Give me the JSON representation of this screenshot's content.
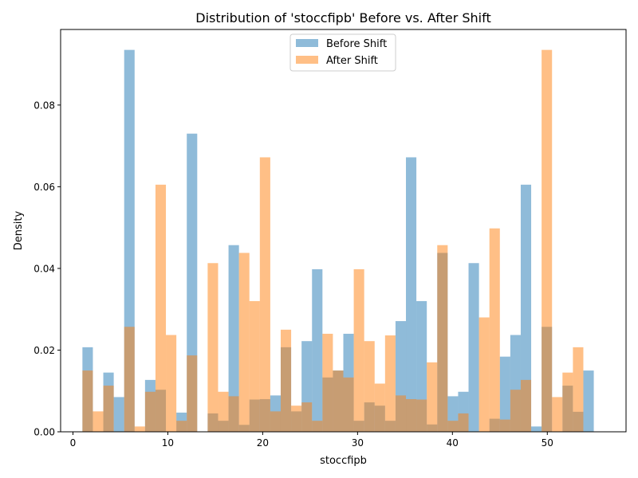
{
  "chart_data": {
    "type": "bar",
    "title": "Distribution of 'stoccfipb' Before vs. After Shift",
    "xlabel": "stoccfipb",
    "ylabel": "Density",
    "xlim": [
      -1.3,
      58.3
    ],
    "ylim": [
      0,
      0.0985
    ],
    "xticks": [
      0,
      10,
      20,
      30,
      40,
      50
    ],
    "yticks": [
      0.0,
      0.02,
      0.04,
      0.06,
      0.08
    ],
    "ytick_labels": [
      "0.00",
      "0.02",
      "0.04",
      "0.06",
      "0.08"
    ],
    "grid": false,
    "legend": "top-center",
    "bin_width": 1.1,
    "bin_start": 1.0,
    "series": [
      {
        "name": "Before Shift",
        "color": "#1f77b4",
        "alpha": 0.5,
        "values": [
          0.0207,
          0,
          0.0145,
          0.0085,
          0.0935,
          0,
          0.0127,
          0.0103,
          0,
          0.0047,
          0.073,
          0,
          0.0045,
          0.0027,
          0.0457,
          0.0017,
          0.0079,
          0.008,
          0.0089,
          0.0207,
          0.005,
          0.0222,
          0.0398,
          0.0133,
          0.015,
          0.024,
          0.0027,
          0.0072,
          0.0064,
          0.0027,
          0.0271,
          0.0672,
          0.032,
          0.0018,
          0.0438,
          0.0087,
          0.0098,
          0.0413,
          0,
          0.0032,
          0.0184,
          0.0237,
          0.0605,
          0.0013,
          0.0257,
          0,
          0.0113,
          0.0049,
          0.015
        ]
      },
      {
        "name": "After Shift",
        "color": "#ff7f0e",
        "alpha": 0.5,
        "values": [
          0.015,
          0.005,
          0.0113,
          0,
          0.0257,
          0.0013,
          0.0098,
          0.0605,
          0.0237,
          0.0027,
          0.0187,
          0,
          0.0413,
          0.0098,
          0.0087,
          0.0438,
          0.032,
          0.0672,
          0.005,
          0.025,
          0.0064,
          0.0072,
          0.0027,
          0.024,
          0.015,
          0.0133,
          0.0398,
          0.0222,
          0.0118,
          0.0236,
          0.0089,
          0.008,
          0.0079,
          0.017,
          0.0457,
          0.0027,
          0.0045,
          0,
          0.028,
          0.0498,
          0.003,
          0.0103,
          0.0127,
          0,
          0.0935,
          0.0085,
          0.0145,
          0.0207
        ]
      }
    ]
  }
}
